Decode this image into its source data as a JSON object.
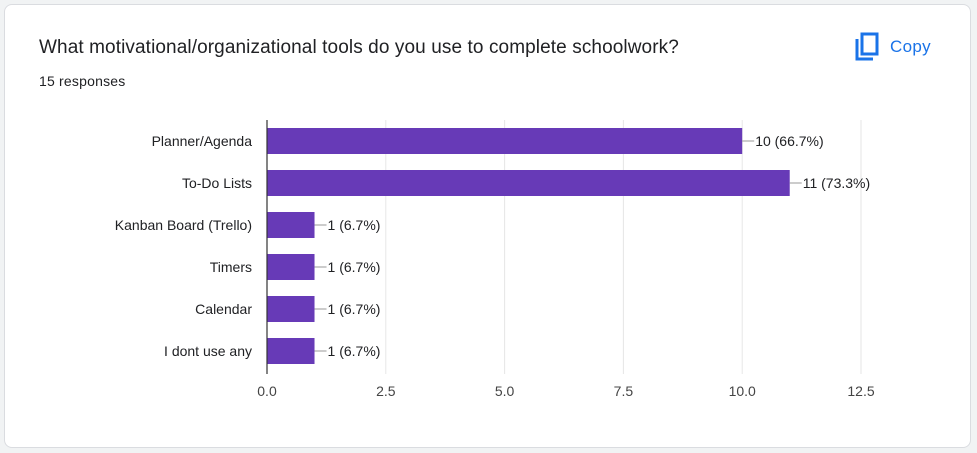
{
  "question": {
    "title": "What motivational/organizational tools do you use to complete schoolwork?",
    "responses": "15 responses"
  },
  "copy_button": {
    "label": "Copy",
    "icon": "copy-icon"
  },
  "colors": {
    "bar": "#673ab7",
    "accent": "#1a73e8",
    "text": "#202124",
    "grid": "#e6e6e6"
  },
  "chart_data": {
    "type": "bar",
    "orientation": "horizontal",
    "title": "",
    "xlabel": "",
    "ylabel": "",
    "categories": [
      "Planner/Agenda",
      "To-Do Lists",
      "Kanban Board (Trello)",
      "Timers",
      "Calendar",
      "I dont use any"
    ],
    "values": [
      10,
      11,
      1,
      1,
      1,
      1
    ],
    "data_labels": [
      "10 (66.7%)",
      "11 (73.3%)",
      "1 (6.7%)",
      "1 (6.7%)",
      "1 (6.7%)",
      "1 (6.7%)"
    ],
    "xlim": [
      0,
      12.5
    ],
    "x_ticks": [
      0,
      2.5,
      5,
      7.5,
      10,
      12.5
    ],
    "x_tick_labels": [
      "0.0",
      "2.5",
      "5.0",
      "7.5",
      "10.0",
      "12.5"
    ],
    "grid": true,
    "legend": "none"
  }
}
